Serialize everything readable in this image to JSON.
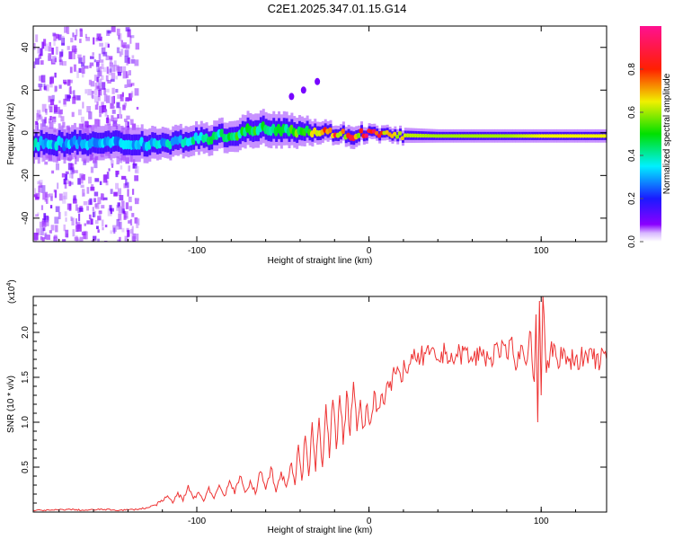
{
  "title": "C2E1.2025.347.01.15.G14",
  "chart_data": [
    {
      "type": "heatmap",
      "xlabel": "Height of straight line (km)",
      "ylabel": "Frequency (Hz)",
      "xlim": [
        -195,
        138
      ],
      "ylim": [
        -51,
        50
      ],
      "xticks": [
        -100,
        0,
        100
      ],
      "xtick_labels": [
        "-100",
        "0",
        "100"
      ],
      "yticks": [
        40,
        20,
        0,
        -20,
        -40
      ],
      "ytick_labels": [
        "40",
        "20",
        "0",
        "-20",
        "-40"
      ],
      "colorbar": {
        "label": "Normalized spectral amplitude",
        "range": [
          0,
          1
        ],
        "ticks": [
          0.0,
          0.2,
          0.4,
          0.6,
          0.8
        ],
        "tick_labels": [
          "0.0",
          "0.2",
          "0.4",
          "0.6",
          "0.8"
        ]
      },
      "ridge": {
        "height_km": [
          -195,
          -170,
          -150,
          -130,
          -120,
          -100,
          -90,
          -80,
          -70,
          -60,
          -50,
          -40,
          -30,
          -20,
          -15,
          -10,
          -5,
          0,
          10,
          20,
          40,
          60,
          80,
          100,
          120,
          138
        ],
        "frequency_hz": [
          -5,
          -5,
          -5,
          -5,
          -5,
          -3,
          -2,
          -1,
          1,
          2,
          2,
          1,
          0.5,
          0,
          -0.5,
          -2,
          0,
          0,
          -1,
          -1.2,
          -1.5,
          -1.5,
          -1.5,
          -1.5,
          -1.5,
          -1.5
        ],
        "amplitude": [
          0.35,
          0.3,
          0.3,
          0.32,
          0.35,
          0.4,
          0.45,
          0.45,
          0.5,
          0.5,
          0.5,
          0.55,
          0.6,
          0.85,
          0.7,
          0.8,
          0.75,
          0.9,
          0.7,
          0.62,
          0.6,
          0.6,
          0.6,
          0.65,
          0.65,
          0.65
        ],
        "width_hz": [
          9,
          9,
          9,
          9,
          8,
          8,
          8,
          8,
          9,
          9,
          9,
          8,
          6,
          5,
          5,
          6,
          5,
          4,
          4,
          4,
          3.5,
          3.5,
          3.5,
          3.5,
          3.5,
          3.5
        ]
      },
      "noise_region_km": [
        -195,
        -140
      ],
      "harmonic": {
        "height_km": [
          -45,
          -38,
          -30
        ],
        "frequency_hz": [
          17,
          20,
          24
        ]
      }
    },
    {
      "type": "line",
      "xlabel": "Height of straight line (km)",
      "ylabel": "SNR (10 * v/v)",
      "scale_label": "(x10",
      "scale_exp": "4",
      "scale_close": ")",
      "xlim": [
        -195,
        138
      ],
      "ylim": [
        0,
        2.4
      ],
      "xticks": [
        -100,
        0,
        100
      ],
      "xtick_labels": [
        "-100",
        "0",
        "100"
      ],
      "yticks": [
        0.5,
        1.0,
        1.5,
        2.0
      ],
      "ytick_labels": [
        "0.5",
        "1.0",
        "1.5",
        "2.0"
      ],
      "color": "#ee3333",
      "x": [
        -195,
        -185,
        -175,
        -165,
        -155,
        -145,
        -135,
        -128,
        -124,
        -120,
        -117,
        -114,
        -111,
        -108,
        -105,
        -102,
        -99,
        -96,
        -93,
        -90,
        -87,
        -84,
        -81,
        -78,
        -75,
        -72,
        -69,
        -66,
        -63,
        -60,
        -57,
        -54,
        -51,
        -48,
        -45,
        -43,
        -41,
        -39,
        -37,
        -35,
        -33,
        -31,
        -29,
        -27,
        -25,
        -23,
        -21,
        -19,
        -17,
        -15,
        -13,
        -11,
        -9,
        -7,
        -5,
        -3,
        -1,
        1,
        3,
        5,
        7,
        9,
        11,
        13,
        15,
        18,
        21,
        24,
        27,
        30,
        35,
        40,
        45,
        50,
        55,
        60,
        65,
        70,
        75,
        80,
        83,
        86,
        89,
        92,
        94,
        96,
        97,
        98,
        99,
        100,
        101,
        103,
        106,
        110,
        113,
        116,
        120,
        125,
        130,
        138
      ],
      "values": [
        0.02,
        0.02,
        0.03,
        0.02,
        0.03,
        0.02,
        0.03,
        0.05,
        0.08,
        0.12,
        0.18,
        0.1,
        0.22,
        0.12,
        0.3,
        0.15,
        0.22,
        0.12,
        0.28,
        0.15,
        0.3,
        0.18,
        0.35,
        0.2,
        0.4,
        0.22,
        0.35,
        0.2,
        0.45,
        0.25,
        0.5,
        0.22,
        0.45,
        0.28,
        0.55,
        0.3,
        0.75,
        0.35,
        0.85,
        0.4,
        1.0,
        0.45,
        1.05,
        0.5,
        1.2,
        0.6,
        1.25,
        0.7,
        1.3,
        0.75,
        1.35,
        0.85,
        1.45,
        0.9,
        1.25,
        0.95,
        1.2,
        1.0,
        1.35,
        1.15,
        1.3,
        1.2,
        1.45,
        1.35,
        1.55,
        1.55,
        1.6,
        1.65,
        1.7,
        1.72,
        1.75,
        1.7,
        1.78,
        1.7,
        1.8,
        1.68,
        1.78,
        1.7,
        1.82,
        1.72,
        1.95,
        1.62,
        1.85,
        1.7,
        2.0,
        1.45,
        2.2,
        1.0,
        2.35,
        1.3,
        2.4,
        1.55,
        1.9,
        1.6,
        1.82,
        1.68,
        1.72,
        1.71,
        1.7,
        1.7
      ]
    }
  ]
}
